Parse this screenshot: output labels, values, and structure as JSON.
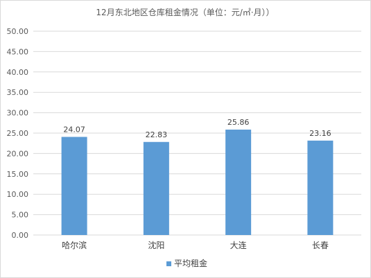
{
  "chart_data": {
    "type": "bar",
    "title": "12月东北地区仓库租金情况（单位：元/㎡·月））",
    "xlabel": "",
    "ylabel": "",
    "categories": [
      "哈尔滨",
      "沈阳",
      "大连",
      "长春"
    ],
    "series": [
      {
        "name": "平均租金",
        "values": [
          24.07,
          22.83,
          25.86,
          23.16
        ],
        "labels": [
          "24.07",
          "22.83",
          "25.86",
          "23.16"
        ],
        "color": "#5b9bd5"
      }
    ],
    "ylim": [
      0,
      50
    ],
    "yticks": [
      "0.00",
      "5.00",
      "10.00",
      "15.00",
      "20.00",
      "25.00",
      "30.00",
      "35.00",
      "40.00",
      "45.00",
      "50.00"
    ],
    "grid": true,
    "legend_position": "bottom",
    "colors": {
      "bar": "#5b9bd5",
      "grid": "#d9d9d9"
    }
  }
}
